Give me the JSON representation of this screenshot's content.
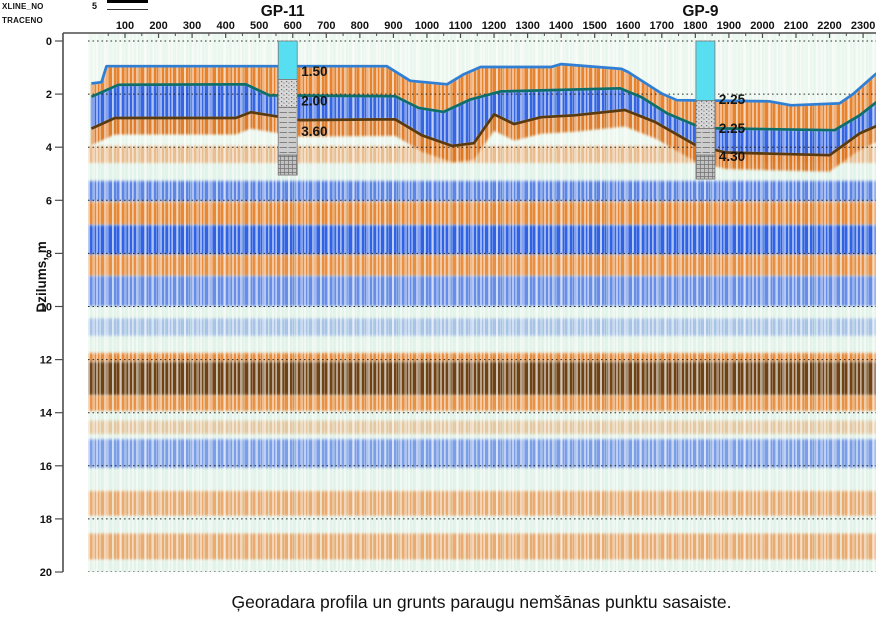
{
  "header": {
    "xline_label": "XLINE_NO",
    "xline_value": "5",
    "traceno_label": "TRACENO"
  },
  "y_axis_label": "Dzilums, m",
  "caption": "Ģeoradara profila un grunts paraugu nemšānas punktu sasaiste.",
  "colors": {
    "background": "#ECF7EF",
    "pale": "#E2F3E9",
    "orange": "#E8791C",
    "deep_orange": "#DE6F14",
    "blue": "#2457E2",
    "dark_brown": "#6B3B10",
    "cyan_fill": "#57DEF0",
    "horizon_blue": "#2F7FD6",
    "horizon_teal": "#0E6F68",
    "horizon_brown": "#5A3A0F",
    "axis": "#4d4d4d",
    "text": "#111111",
    "log_gray": "#D6D6D6",
    "log_line": "#787878"
  },
  "chart_data": {
    "type": "heatmap",
    "description": "Ground-penetrating radar reflection profile (radargram) with three interpreted horizon lines and two soil-sampling borehole logs tied to the profile",
    "x_axis": {
      "label": "TRACENO",
      "range": [
        0,
        2340
      ],
      "ticks": [
        100,
        200,
        300,
        400,
        500,
        600,
        700,
        800,
        900,
        1000,
        1100,
        1200,
        1300,
        1400,
        1500,
        1600,
        1700,
        1800,
        1900,
        2000,
        2100,
        2200,
        2300
      ]
    },
    "y_axis": {
      "label": "Dzilums, m",
      "range": [
        0,
        20
      ],
      "ticks": [
        0,
        2,
        4,
        6,
        8,
        10,
        12,
        14,
        16,
        18,
        20
      ],
      "grid": "dotted"
    },
    "horizons": [
      {
        "name": "horizon-blue",
        "color_key": "horizon_blue",
        "picks": [
          [
            0,
            1.6
          ],
          [
            30,
            1.55
          ],
          [
            45,
            0.95
          ],
          [
            880,
            0.95
          ],
          [
            950,
            1.5
          ],
          [
            1060,
            1.63
          ],
          [
            1110,
            1.25
          ],
          [
            1160,
            0.98
          ],
          [
            1370,
            0.98
          ],
          [
            1400,
            0.87
          ],
          [
            1580,
            1.05
          ],
          [
            1600,
            1.17
          ],
          [
            1640,
            1.5
          ],
          [
            1700,
            1.98
          ],
          [
            1745,
            2.23
          ],
          [
            2020,
            2.27
          ],
          [
            2085,
            2.42
          ],
          [
            2230,
            2.35
          ],
          [
            2270,
            2.0
          ],
          [
            2340,
            1.22
          ]
        ]
      },
      {
        "name": "horizon-teal",
        "color_key": "horizon_teal",
        "picks": [
          [
            0,
            2.1
          ],
          [
            80,
            1.65
          ],
          [
            460,
            1.63
          ],
          [
            530,
            2.05
          ],
          [
            905,
            2.08
          ],
          [
            975,
            2.52
          ],
          [
            1050,
            2.67
          ],
          [
            1130,
            2.2
          ],
          [
            1220,
            1.9
          ],
          [
            1575,
            1.78
          ],
          [
            1640,
            2.12
          ],
          [
            1715,
            2.72
          ],
          [
            1820,
            3.28
          ],
          [
            2215,
            3.36
          ],
          [
            2290,
            2.8
          ],
          [
            2340,
            2.3
          ]
        ]
      },
      {
        "name": "horizon-brown",
        "color_key": "horizon_brown",
        "picks": [
          [
            0,
            3.3
          ],
          [
            70,
            2.9
          ],
          [
            430,
            2.9
          ],
          [
            475,
            2.68
          ],
          [
            620,
            2.98
          ],
          [
            905,
            2.95
          ],
          [
            985,
            3.55
          ],
          [
            1075,
            3.95
          ],
          [
            1140,
            3.85
          ],
          [
            1200,
            2.76
          ],
          [
            1260,
            3.13
          ],
          [
            1340,
            2.87
          ],
          [
            1440,
            2.8
          ],
          [
            1590,
            2.6
          ],
          [
            1680,
            3.05
          ],
          [
            1800,
            3.92
          ],
          [
            1890,
            4.2
          ],
          [
            2200,
            4.3
          ],
          [
            2290,
            3.48
          ],
          [
            2340,
            3.2
          ]
        ]
      }
    ],
    "boreholes": [
      {
        "id": "GP-11",
        "trace": 585,
        "layers": [
          {
            "pattern": "water",
            "from": 0,
            "to": 1.45
          },
          {
            "pattern": "dots",
            "from": 1.45,
            "to": 2.5
          },
          {
            "pattern": "dashes",
            "from": 2.5,
            "to": 4.3
          },
          {
            "pattern": "grid",
            "from": 4.3,
            "to": 5.05
          }
        ],
        "depth_labels": [
          {
            "text": "1.50",
            "depth": 1.15
          },
          {
            "text": "2.00",
            "depth": 2.26
          },
          {
            "text": "3.60",
            "depth": 3.4
          }
        ]
      },
      {
        "id": "GP-9",
        "trace": 1830,
        "layers": [
          {
            "pattern": "water",
            "from": 0,
            "to": 2.25
          },
          {
            "pattern": "dots",
            "from": 2.25,
            "to": 3.3
          },
          {
            "pattern": "dashes",
            "from": 3.3,
            "to": 4.3
          },
          {
            "pattern": "grid",
            "from": 4.3,
            "to": 5.2
          }
        ],
        "depth_labels": [
          {
            "text": "2.25",
            "depth": 2.2
          },
          {
            "text": "2.25",
            "depth": 3.3
          },
          {
            "text": "4.30",
            "depth": 4.35
          }
        ]
      }
    ],
    "reflectivity_bands": [
      {
        "from": 3.95,
        "to": 4.62,
        "tone": "orange",
        "opacity": 0.45
      },
      {
        "from": 4.62,
        "to": 5.27,
        "tone": "pale",
        "opacity": 0.9
      },
      {
        "from": 5.27,
        "to": 6.06,
        "tone": "blue",
        "opacity": 0.7
      },
      {
        "from": 6.06,
        "to": 6.93,
        "tone": "orange",
        "opacity": 0.88
      },
      {
        "from": 6.93,
        "to": 8.06,
        "tone": "blue",
        "opacity": 0.92
      },
      {
        "from": 8.06,
        "to": 8.85,
        "tone": "orange",
        "opacity": 0.82
      },
      {
        "from": 8.85,
        "to": 10.0,
        "tone": "blue",
        "opacity": 0.65
      },
      {
        "from": 10.0,
        "to": 11.75,
        "tone": "pale",
        "opacity": 0.85
      },
      {
        "from": 10.45,
        "to": 11.1,
        "tone": "blue",
        "opacity": 0.3
      },
      {
        "from": 11.75,
        "to": 12.08,
        "tone": "orange",
        "opacity": 0.85
      },
      {
        "from": 12.08,
        "to": 13.35,
        "tone": "brown",
        "opacity": 0.96
      },
      {
        "from": 13.35,
        "to": 13.95,
        "tone": "orange",
        "opacity": 0.8
      },
      {
        "from": 13.95,
        "to": 15.0,
        "tone": "pale",
        "opacity": 0.75
      },
      {
        "from": 14.3,
        "to": 14.8,
        "tone": "orange",
        "opacity": 0.35
      },
      {
        "from": 15.0,
        "to": 16.1,
        "tone": "blue",
        "opacity": 0.55
      },
      {
        "from": 16.1,
        "to": 16.95,
        "tone": "pale",
        "opacity": 0.8
      },
      {
        "from": 16.95,
        "to": 17.9,
        "tone": "orange",
        "opacity": 0.6
      },
      {
        "from": 17.9,
        "to": 18.55,
        "tone": "pale",
        "opacity": 0.8
      },
      {
        "from": 18.55,
        "to": 19.55,
        "tone": "orange",
        "opacity": 0.6
      },
      {
        "from": 19.55,
        "to": 20.0,
        "tone": "pale",
        "opacity": 0.85
      }
    ]
  }
}
